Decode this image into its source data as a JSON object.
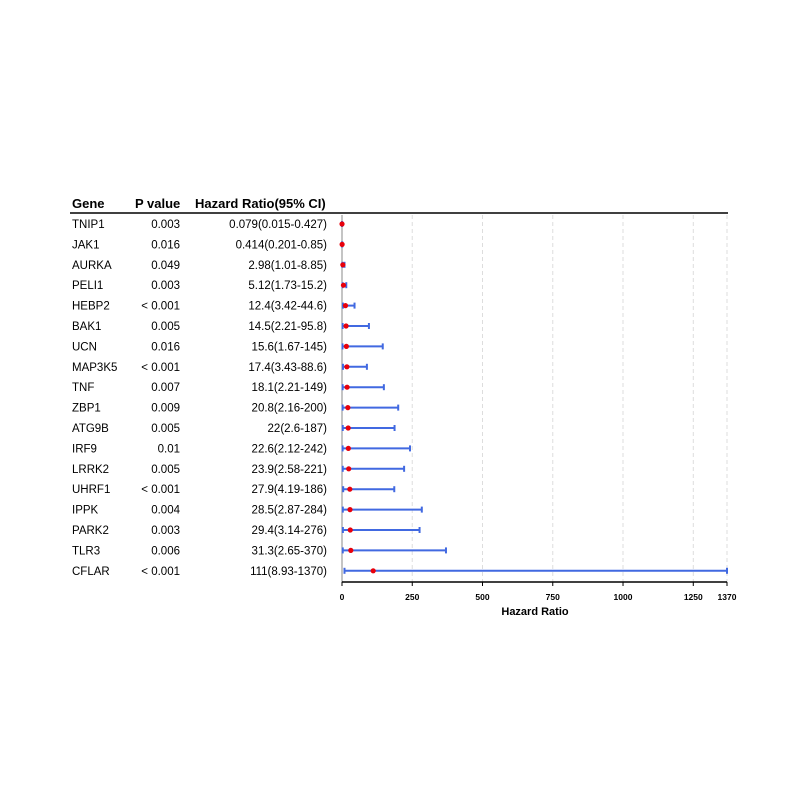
{
  "chart_data": {
    "type": "forest",
    "columns": [
      "Gene",
      "P value",
      "Hazard Ratio(95% CI)"
    ],
    "xlabel": "Hazard Ratio",
    "xlim": [
      0,
      1370
    ],
    "xticks": [
      0,
      250,
      500,
      750,
      1000,
      1250,
      1370
    ],
    "grid": "dashed vertical",
    "colors": {
      "point": "#e8000b",
      "ci": "#4169e1",
      "grid": "#dddddd",
      "axis": "#000000"
    },
    "rows": [
      {
        "gene": "TNIP1",
        "p": "0.003",
        "hr_text": "0.079(0.015-0.427)",
        "hr": 0.079,
        "lo": 0.015,
        "hi": 0.427
      },
      {
        "gene": "JAK1",
        "p": "0.016",
        "hr_text": "0.414(0.201-0.85)",
        "hr": 0.414,
        "lo": 0.201,
        "hi": 0.85
      },
      {
        "gene": "AURKA",
        "p": "0.049",
        "hr_text": "2.98(1.01-8.85)",
        "hr": 2.98,
        "lo": 1.01,
        "hi": 8.85
      },
      {
        "gene": "PELI1",
        "p": "0.003",
        "hr_text": "5.12(1.73-15.2)",
        "hr": 5.12,
        "lo": 1.73,
        "hi": 15.2
      },
      {
        "gene": "HEBP2",
        "p": "< 0.001",
        "hr_text": "12.4(3.42-44.6)",
        "hr": 12.4,
        "lo": 3.42,
        "hi": 44.6
      },
      {
        "gene": "BAK1",
        "p": "0.005",
        "hr_text": "14.5(2.21-95.8)",
        "hr": 14.5,
        "lo": 2.21,
        "hi": 95.8
      },
      {
        "gene": "UCN",
        "p": "0.016",
        "hr_text": "15.6(1.67-145)",
        "hr": 15.6,
        "lo": 1.67,
        "hi": 145
      },
      {
        "gene": "MAP3K5",
        "p": "< 0.001",
        "hr_text": "17.4(3.43-88.6)",
        "hr": 17.4,
        "lo": 3.43,
        "hi": 88.6
      },
      {
        "gene": "TNF",
        "p": "0.007",
        "hr_text": "18.1(2.21-149)",
        "hr": 18.1,
        "lo": 2.21,
        "hi": 149
      },
      {
        "gene": "ZBP1",
        "p": "0.009",
        "hr_text": "20.8(2.16-200)",
        "hr": 20.8,
        "lo": 2.16,
        "hi": 200
      },
      {
        "gene": "ATG9B",
        "p": "0.005",
        "hr_text": "22(2.6-187)",
        "hr": 22,
        "lo": 2.6,
        "hi": 187
      },
      {
        "gene": "IRF9",
        "p": "0.01",
        "hr_text": "22.6(2.12-242)",
        "hr": 22.6,
        "lo": 2.12,
        "hi": 242
      },
      {
        "gene": "LRRK2",
        "p": "0.005",
        "hr_text": "23.9(2.58-221)",
        "hr": 23.9,
        "lo": 2.58,
        "hi": 221
      },
      {
        "gene": "UHRF1",
        "p": "< 0.001",
        "hr_text": "27.9(4.19-186)",
        "hr": 27.9,
        "lo": 4.19,
        "hi": 186
      },
      {
        "gene": "IPPK",
        "p": "0.004",
        "hr_text": "28.5(2.87-284)",
        "hr": 28.5,
        "lo": 2.87,
        "hi": 284
      },
      {
        "gene": "PARK2",
        "p": "0.003",
        "hr_text": "29.4(3.14-276)",
        "hr": 29.4,
        "lo": 3.14,
        "hi": 276
      },
      {
        "gene": "TLR3",
        "p": "0.006",
        "hr_text": "31.3(2.65-370)",
        "hr": 31.3,
        "lo": 2.65,
        "hi": 370
      },
      {
        "gene": "CFLAR",
        "p": "< 0.001",
        "hr_text": "111(8.93-1370)",
        "hr": 111,
        "lo": 8.93,
        "hi": 1370
      }
    ]
  }
}
